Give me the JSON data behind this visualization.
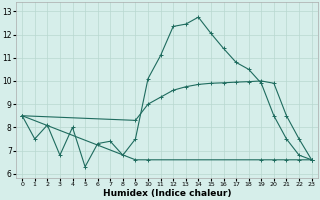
{
  "xlabel": "Humidex (Indice chaleur)",
  "xlim": [
    -0.5,
    23.5
  ],
  "ylim": [
    5.8,
    13.4
  ],
  "yticks": [
    6,
    7,
    8,
    9,
    10,
    11,
    12,
    13
  ],
  "background_color": "#d6eeea",
  "line_color": "#1e6b5e",
  "grid_color": "#b8d8d0",
  "line1_x": [
    0,
    1,
    2,
    3,
    4,
    5,
    6,
    7,
    8,
    9,
    10,
    11,
    12,
    13,
    14,
    15,
    16,
    17,
    18,
    19,
    20,
    21,
    22,
    23
  ],
  "line1_y": [
    8.5,
    7.5,
    8.1,
    6.8,
    8.0,
    6.3,
    7.3,
    7.4,
    6.8,
    7.5,
    10.1,
    11.1,
    12.35,
    12.45,
    12.75,
    12.05,
    11.4,
    10.8,
    10.5,
    9.9,
    8.5,
    7.5,
    6.8,
    6.6
  ],
  "line2_x": [
    0,
    9,
    10,
    11,
    12,
    13,
    14,
    15,
    16,
    17,
    18,
    19,
    20,
    21,
    22,
    23
  ],
  "line2_y": [
    8.5,
    8.3,
    9.0,
    9.3,
    9.6,
    9.75,
    9.85,
    9.9,
    9.92,
    9.95,
    9.97,
    10.0,
    9.9,
    8.5,
    7.5,
    6.6
  ],
  "line3_x": [
    0,
    9,
    10,
    19,
    20,
    21,
    22,
    23
  ],
  "line3_y": [
    8.5,
    6.6,
    6.6,
    6.6,
    6.6,
    6.6,
    6.6,
    6.6
  ]
}
